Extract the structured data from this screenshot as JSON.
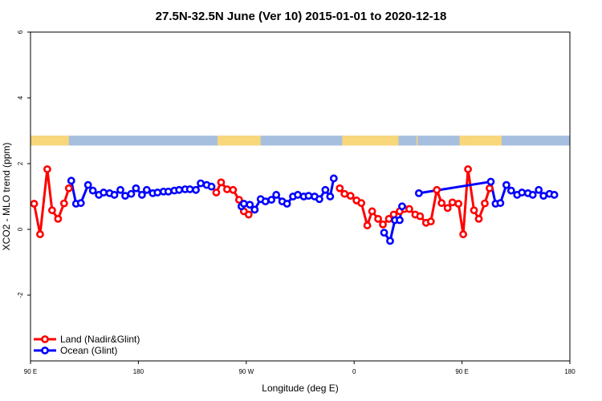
{
  "chart_data": {
    "type": "line",
    "title": "27.5N-32.5N June (Ver 10)   2015-01-01 to 2020-12-18",
    "xlabel": "Longitude (deg E)",
    "ylabel": "XCO2 - MLO trend (ppm)",
    "xlim": [
      90,
      540
    ],
    "ylim": [
      -4,
      6
    ],
    "x_ticks": [
      {
        "value": 90,
        "label": "90 E"
      },
      {
        "value": 180,
        "label": "180"
      },
      {
        "value": 270,
        "label": "90 W"
      },
      {
        "value": 360,
        "label": "0"
      },
      {
        "value": 450,
        "label": "90 E"
      },
      {
        "value": 540,
        "label": "180"
      }
    ],
    "y_ticks": [
      {
        "value": -2,
        "label": "-2"
      },
      {
        "value": 0,
        "label": "0"
      },
      {
        "value": 2,
        "label": "2"
      },
      {
        "value": 4,
        "label": "4"
      },
      {
        "value": 6,
        "label": "6"
      }
    ],
    "grid": false,
    "legend_position": "bottom-left",
    "surface_band": {
      "y_range": [
        2.55,
        2.85
      ],
      "land_color": "#F8D67A",
      "ocean_color": "#A7BFDF",
      "land_segments": [
        [
          90,
          122
        ],
        [
          246,
          282
        ],
        [
          350,
          397
        ],
        [
          412,
          413
        ],
        [
          448,
          455
        ],
        [
          455,
          483
        ]
      ]
    },
    "series": [
      {
        "name": "Land (Nadir&Glint)",
        "color": "#FF0000",
        "points": [
          [
            93,
            0.78
          ],
          [
            98,
            -0.15
          ],
          [
            104,
            1.83
          ],
          [
            108,
            0.58
          ],
          [
            113,
            0.32
          ],
          [
            118,
            0.79
          ],
          [
            122,
            1.25
          ],
          [
            127,
            null
          ],
          [
            245,
            1.12
          ],
          [
            249,
            1.43
          ],
          [
            254,
            1.22
          ],
          [
            259,
            1.2
          ],
          [
            264,
            0.9
          ],
          [
            268,
            0.55
          ],
          [
            272,
            0.45
          ],
          [
            277,
            0.6
          ],
          [
            282,
            null
          ],
          [
            348,
            1.25
          ],
          [
            352,
            1.08
          ],
          [
            357,
            1.02
          ],
          [
            362,
            0.88
          ],
          [
            366,
            0.8
          ],
          [
            371,
            0.12
          ],
          [
            375,
            0.55
          ],
          [
            380,
            0.32
          ],
          [
            384,
            0.15
          ],
          [
            389,
            0.32
          ],
          [
            393,
            0.45
          ],
          [
            398,
            0.55
          ],
          [
            402,
            0.62
          ],
          [
            406,
            0.62
          ],
          [
            411,
            0.45
          ],
          [
            415,
            0.4
          ],
          [
            420,
            0.2
          ],
          [
            424,
            0.24
          ],
          [
            429,
            1.2
          ],
          [
            433,
            0.8
          ],
          [
            438,
            0.65
          ],
          [
            442,
            0.82
          ],
          [
            447,
            0.78
          ],
          [
            451,
            -0.15
          ],
          [
            455,
            1.83
          ],
          [
            460,
            0.58
          ],
          [
            464,
            0.32
          ],
          [
            469,
            0.79
          ],
          [
            473,
            1.25
          ]
        ]
      },
      {
        "name": "Ocean (Glint)",
        "color": "#0000FF",
        "points": [
          [
            124,
            1.48
          ],
          [
            128,
            0.78
          ],
          [
            132,
            0.8
          ],
          [
            138,
            1.35
          ],
          [
            142,
            1.18
          ],
          [
            147,
            1.05
          ],
          [
            151,
            1.12
          ],
          [
            156,
            1.1
          ],
          [
            160,
            1.05
          ],
          [
            165,
            1.2
          ],
          [
            169,
            1.02
          ],
          [
            174,
            1.08
          ],
          [
            178,
            1.25
          ],
          [
            183,
            1.05
          ],
          [
            187,
            1.2
          ],
          [
            192,
            1.1
          ],
          [
            196,
            1.12
          ],
          [
            201,
            1.15
          ],
          [
            205,
            1.15
          ],
          [
            210,
            1.18
          ],
          [
            214,
            1.2
          ],
          [
            219,
            1.22
          ],
          [
            223,
            1.22
          ],
          [
            228,
            1.2
          ],
          [
            232,
            1.4
          ],
          [
            237,
            1.35
          ],
          [
            241,
            1.3
          ],
          [
            246,
            null
          ],
          [
            266,
            0.7
          ],
          [
            268,
            0.78
          ],
          [
            273,
            0.75
          ],
          [
            277,
            0.6
          ],
          [
            282,
            0.92
          ],
          [
            286,
            0.85
          ],
          [
            291,
            0.9
          ],
          [
            295,
            1.05
          ],
          [
            300,
            0.85
          ],
          [
            304,
            0.78
          ],
          [
            309,
            1.0
          ],
          [
            313,
            1.05
          ],
          [
            318,
            1.0
          ],
          [
            322,
            1.02
          ],
          [
            327,
            1.0
          ],
          [
            331,
            0.92
          ],
          [
            336,
            1.2
          ],
          [
            340,
            1.0
          ],
          [
            343,
            1.55
          ],
          [
            347,
            null
          ],
          [
            385,
            -0.1
          ],
          [
            390,
            -0.35
          ],
          [
            394,
            0.28
          ],
          [
            398,
            0.28
          ],
          [
            400,
            0.7
          ],
          [
            404,
            null
          ],
          [
            414,
            1.1
          ],
          [
            474,
            1.45
          ],
          [
            478,
            0.78
          ],
          [
            482,
            0.8
          ],
          [
            487,
            1.35
          ],
          [
            491,
            1.18
          ],
          [
            496,
            1.05
          ],
          [
            500,
            1.12
          ],
          [
            505,
            1.1
          ],
          [
            509,
            1.05
          ],
          [
            514,
            1.2
          ],
          [
            518,
            1.02
          ],
          [
            523,
            1.08
          ],
          [
            527,
            1.05
          ]
        ]
      }
    ]
  }
}
